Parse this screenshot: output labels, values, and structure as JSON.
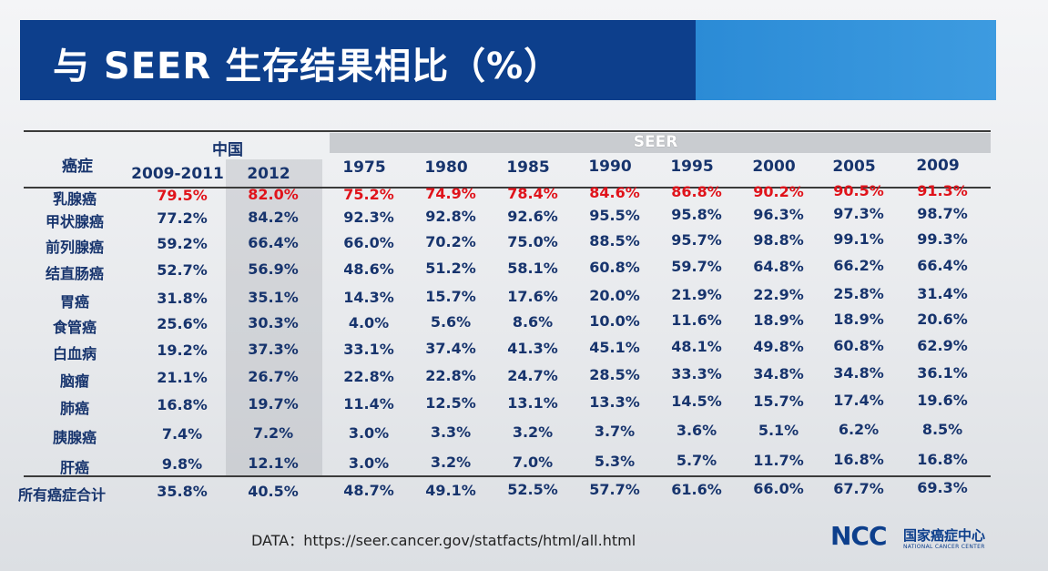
{
  "title": "与 SEER 生存结果相比（%）",
  "header": {
    "row_header": "癌症",
    "china_group": "中国",
    "seer_group": "SEER",
    "columns": [
      "2009-2011",
      "2012",
      "1975",
      "1980",
      "1985",
      "1990",
      "1995",
      "2000",
      "2005",
      "2009"
    ]
  },
  "rows": [
    {
      "label": "乳腺癌",
      "values": [
        "79.5%",
        "82.0%",
        "75.2%",
        "74.9%",
        "78.4%",
        "84.6%",
        "86.8%",
        "90.2%",
        "90.5%",
        "91.3%"
      ],
      "highlight": true
    },
    {
      "label": "甲状腺癌",
      "values": [
        "77.2%",
        "84.2%",
        "92.3%",
        "92.8%",
        "92.6%",
        "95.5%",
        "95.8%",
        "96.3%",
        "97.3%",
        "98.7%"
      ]
    },
    {
      "label": "前列腺癌",
      "values": [
        "59.2%",
        "66.4%",
        "66.0%",
        "70.2%",
        "75.0%",
        "88.5%",
        "95.7%",
        "98.8%",
        "99.1%",
        "99.3%"
      ]
    },
    {
      "label": "结直肠癌",
      "values": [
        "52.7%",
        "56.9%",
        "48.6%",
        "51.2%",
        "58.1%",
        "60.8%",
        "59.7%",
        "64.8%",
        "66.2%",
        "66.4%"
      ]
    },
    {
      "label": "胃癌",
      "values": [
        "31.8%",
        "35.1%",
        "14.3%",
        "15.7%",
        "17.6%",
        "20.0%",
        "21.9%",
        "22.9%",
        "25.8%",
        "31.4%"
      ]
    },
    {
      "label": "食管癌",
      "values": [
        "25.6%",
        "30.3%",
        "4.0%",
        "5.6%",
        "8.6%",
        "10.0%",
        "11.6%",
        "18.9%",
        "18.9%",
        "20.6%"
      ]
    },
    {
      "label": "白血病",
      "values": [
        "19.2%",
        "37.3%",
        "33.1%",
        "37.4%",
        "41.3%",
        "45.1%",
        "48.1%",
        "49.8%",
        "60.8%",
        "62.9%"
      ]
    },
    {
      "label": "脑瘤",
      "values": [
        "21.1%",
        "26.7%",
        "22.8%",
        "22.8%",
        "24.7%",
        "28.5%",
        "33.3%",
        "34.8%",
        "34.8%",
        "36.1%"
      ]
    },
    {
      "label": "肺癌",
      "values": [
        "16.8%",
        "19.7%",
        "11.4%",
        "12.5%",
        "13.1%",
        "13.3%",
        "14.5%",
        "15.7%",
        "17.4%",
        "19.6%"
      ]
    },
    {
      "label": "胰腺癌",
      "values": [
        "7.4%",
        "7.2%",
        "3.0%",
        "3.3%",
        "3.2%",
        "3.7%",
        "3.6%",
        "5.1%",
        "6.2%",
        "8.5%"
      ]
    },
    {
      "label": "肝癌",
      "values": [
        "9.8%",
        "12.1%",
        "3.0%",
        "3.2%",
        "7.0%",
        "5.3%",
        "5.7%",
        "11.7%",
        "16.8%",
        "16.8%"
      ]
    }
  ],
  "total": {
    "label": "所有癌症合计",
    "values": [
      "35.8%",
      "40.5%",
      "48.7%",
      "49.1%",
      "52.5%",
      "57.7%",
      "61.6%",
      "66.0%",
      "67.7%",
      "69.3%"
    ]
  },
  "source": "DATA：https://seer.cancer.gov/statfacts/html/all.html",
  "logo": {
    "mark": "NCC",
    "name_cn": "国家癌症中心",
    "name_en": "NATIONAL CANCER CENTER"
  },
  "colors": {
    "title_bar": "#0d3f8c",
    "accent": "#2b8bd6",
    "text": "#17346d",
    "highlight": "#e0131b"
  }
}
